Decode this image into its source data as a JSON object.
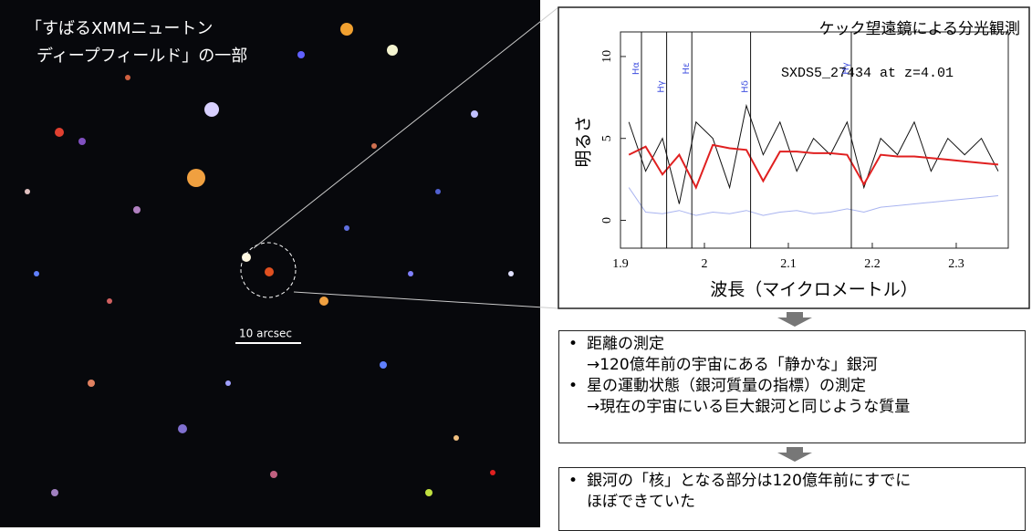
{
  "image": {
    "caption": [
      "「すばるXMMニュートン",
      "ディープフィールド」の一部"
    ],
    "scale_label": "10 arcsec"
  },
  "chart_data": {
    "type": "line",
    "title": "ケック望遠鏡による分光観測",
    "annotation": "SXDS5_27434 at z=4.01",
    "x_label": "波長（マイクロメートル）",
    "y_label": "明るさ",
    "xlim": [
      1.9,
      2.362
    ],
    "ylim": [
      -1.7,
      11.5
    ],
    "xticks": [
      1.9,
      2,
      2.1,
      2.2,
      2.3
    ],
    "yticks": [
      0,
      5,
      10
    ],
    "line_labels": [
      {
        "x": 1.925,
        "label": "Hα"
      },
      {
        "x": 1.955,
        "label": "Hγ"
      },
      {
        "x": 1.985,
        "label": "Hε"
      },
      {
        "x": 2.055,
        "label": "Hδ"
      },
      {
        "x": 2.175,
        "label": "Hγ"
      }
    ],
    "x": [
      1.91,
      1.93,
      1.95,
      1.97,
      1.99,
      2.01,
      2.03,
      2.05,
      2.07,
      2.09,
      2.11,
      2.13,
      2.15,
      2.17,
      2.19,
      2.21,
      2.23,
      2.25,
      2.27,
      2.29,
      2.31,
      2.33,
      2.35
    ],
    "series": [
      {
        "color": "#a9b4f0",
        "values": [
          2,
          0.5,
          0.4,
          0.6,
          0.3,
          0.5,
          0.4,
          0.6,
          0.3,
          0.5,
          0.6,
          0.4,
          0.5,
          0.7,
          0.5,
          0.8,
          0.9,
          1.0,
          1.1,
          1.2,
          1.3,
          1.4,
          1.5
        ]
      },
      {
        "color": "#111111",
        "values": [
          6,
          3,
          5,
          1,
          6,
          5,
          2,
          7,
          4,
          6,
          3,
          5,
          4,
          6,
          2,
          5,
          4,
          6,
          3,
          5,
          4,
          5,
          3
        ]
      },
      {
        "color": "#e02020",
        "values": [
          4.0,
          4.5,
          2.8,
          4.0,
          2.0,
          4.6,
          4.4,
          4.3,
          2.4,
          4.2,
          4.2,
          4.1,
          4.1,
          4.0,
          2.2,
          4.0,
          3.9,
          3.9,
          3.8,
          3.7,
          3.6,
          3.5,
          3.4
        ]
      }
    ]
  },
  "findings": {
    "box1": [
      [
        "距離の測定",
        "→120億年前の宇宙にある「静かな」銀河"
      ],
      [
        "星の運動状態（銀河質量の指標）の測定",
        "→現在の宇宙にいる巨大銀河と同じような質量"
      ]
    ],
    "box2": [
      [
        "銀河の「核」となる部分は120億年前にすでに",
        "ほぼできていた"
      ]
    ]
  }
}
